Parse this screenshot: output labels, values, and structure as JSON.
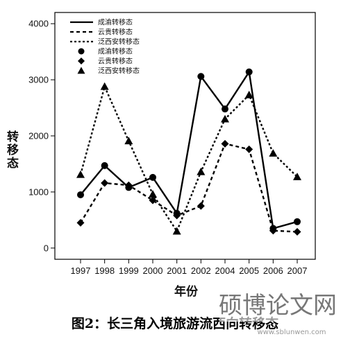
{
  "chart_data": {
    "type": "line",
    "categories": [
      "1997",
      "1998",
      "1999",
      "2000",
      "2001",
      "2002",
      "2004",
      "2005",
      "2006",
      "2007"
    ],
    "series": [
      {
        "name": "成渝转移态",
        "style": "solid",
        "marker": "circle",
        "values": [
          950,
          1470,
          1080,
          1260,
          620,
          3060,
          2480,
          3140,
          350,
          470
        ]
      },
      {
        "name": "云贵转移态",
        "style": "dashed",
        "marker": "diamond",
        "values": [
          450,
          1160,
          1120,
          850,
          580,
          750,
          1860,
          1760,
          310,
          290
        ]
      },
      {
        "name": "泛西安转移态",
        "style": "dotted",
        "marker": "triangle",
        "values": [
          1310,
          2880,
          1910,
          960,
          300,
          1360,
          2300,
          2730,
          1690,
          1270
        ]
      }
    ],
    "ylim": [
      -200,
      4200
    ],
    "yticks": [
      0,
      1000,
      2000,
      3000,
      4000
    ],
    "xlabel": "年份",
    "ylabel": "转移态",
    "legend_position": "top-left",
    "grid": false
  },
  "caption": "图2：长三角入境旅游流西向转移态",
  "watermark": {
    "text": "硕博论文网",
    "url": "www.sblunwen.com"
  },
  "colors": {
    "line": "#000000",
    "frame": "#000000",
    "background": "#ffffff"
  }
}
